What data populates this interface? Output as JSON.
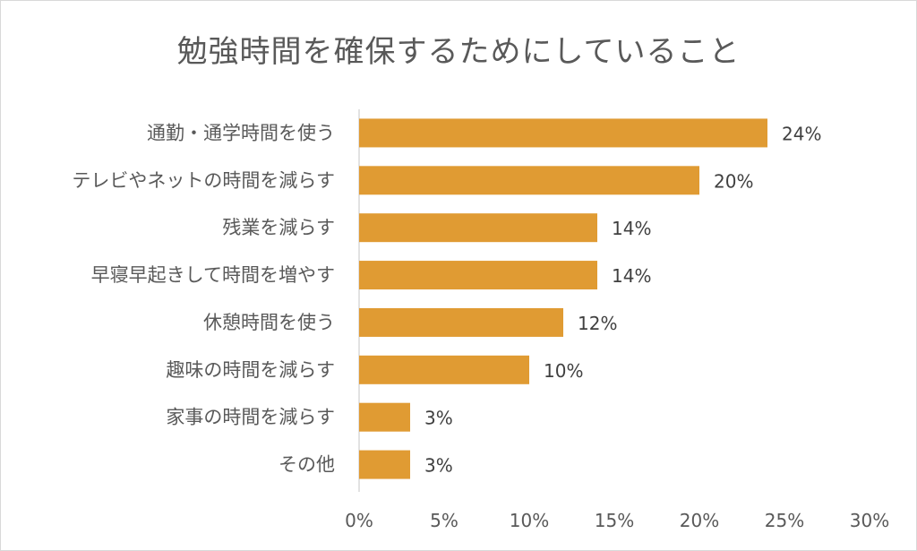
{
  "chart_data": {
    "type": "bar",
    "orientation": "horizontal",
    "title": "勉強時間を確保するためにしていること",
    "categories": [
      "通勤・通学時間を使う",
      "テレビやネットの時間を減らす",
      "残業を減らす",
      "早寝早起きして時間を増やす",
      "休憩時間を使う",
      "趣味の時間を減らす",
      "家事の時間を減らす",
      "その他"
    ],
    "values": [
      24,
      20,
      14,
      14,
      12,
      10,
      3,
      3
    ],
    "data_labels": [
      "24%",
      "20%",
      "14%",
      "14%",
      "12%",
      "10%",
      "3%",
      "3%"
    ],
    "xlim": [
      0,
      30
    ],
    "x_ticks": [
      0,
      5,
      10,
      15,
      20,
      25,
      30
    ],
    "x_tick_labels": [
      "0%",
      "5%",
      "10%",
      "15%",
      "20%",
      "25%",
      "30%"
    ],
    "xlabel": "",
    "ylabel": "",
    "grid": false,
    "legend": "none",
    "bar_color": "#e09b33",
    "axis_color": "#d9d9d9"
  }
}
